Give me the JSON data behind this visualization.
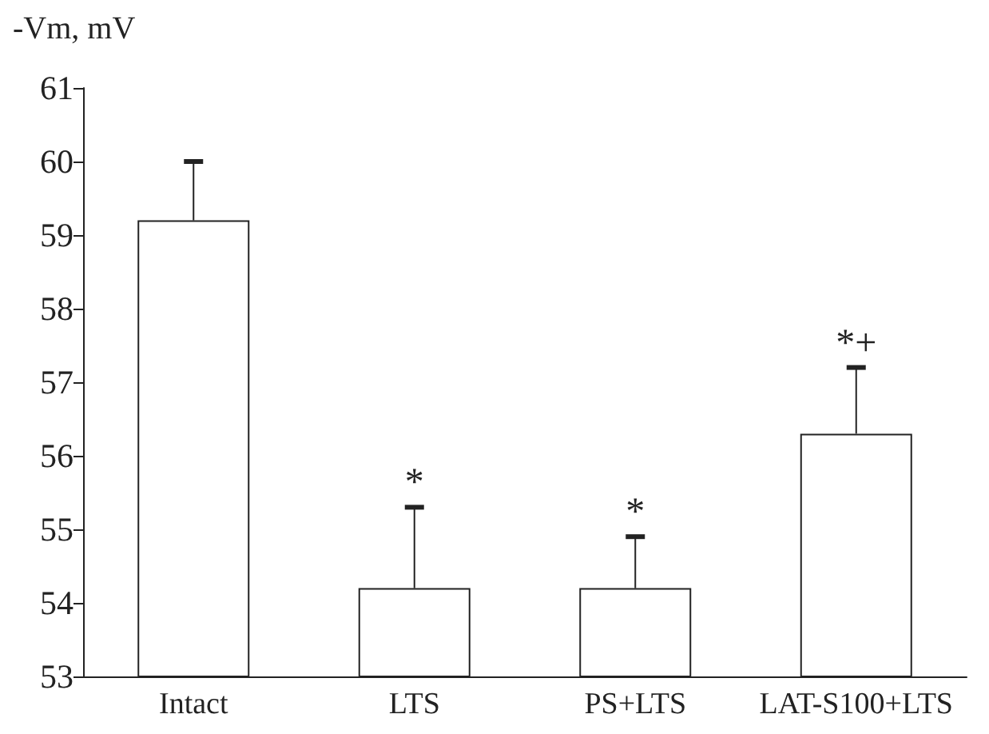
{
  "chart_data": {
    "type": "bar",
    "ylabel": "-Vm, mV",
    "categories": [
      "Intact",
      "LTS",
      "PS+LTS",
      "LAT-S100+LTS"
    ],
    "values": [
      59.2,
      54.2,
      54.2,
      56.3
    ],
    "errors": [
      [
        59.2,
        60.0
      ],
      [
        54.2,
        55.3
      ],
      [
        54.2,
        54.9
      ],
      [
        56.3,
        57.2
      ]
    ],
    "color": "#ffffff",
    "ylim": [
      53,
      61
    ],
    "yticks": [
      53,
      54,
      55,
      56,
      57,
      58,
      59,
      60,
      61
    ],
    "annotations": [
      {
        "text": "*",
        "x": "LTS",
        "y": 55.3
      },
      {
        "text": "*",
        "x": "PS+LTS",
        "y": 54.9
      },
      {
        "text": "*+",
        "x": "LAT-S100+LTS",
        "y": 57.2
      }
    ]
  }
}
